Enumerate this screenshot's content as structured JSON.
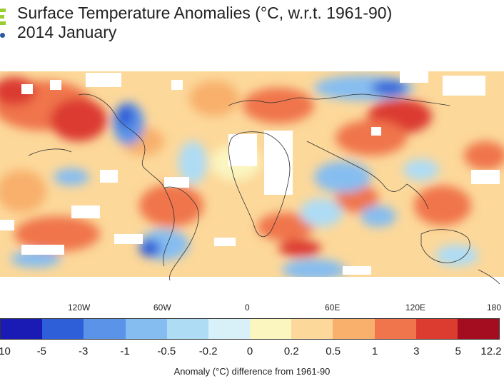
{
  "title": "Surface Temperature Anomalies (°C, w.r.t. 1961-90)",
  "subtitle": "2014 January",
  "longitude_labels": [
    "120W",
    "60W",
    "0",
    "60E",
    "120E",
    "180"
  ],
  "colorbar": {
    "colors": [
      "#1a1ab5",
      "#2e5fd8",
      "#5b93e8",
      "#86bdf0",
      "#aedcf5",
      "#d8f0f8",
      "#fbf5c0",
      "#fcd89a",
      "#f8b06c",
      "#f0744c",
      "#dc3b30",
      "#a40d1f"
    ],
    "ticks": [
      "-10",
      "-5",
      "-3",
      "-1",
      "-0.5",
      "-0.2",
      "0",
      "0.2",
      "0.5",
      "1",
      "3",
      "5",
      "12.2"
    ]
  },
  "caption": "Anomaly (°C) difference from 1961-90"
}
